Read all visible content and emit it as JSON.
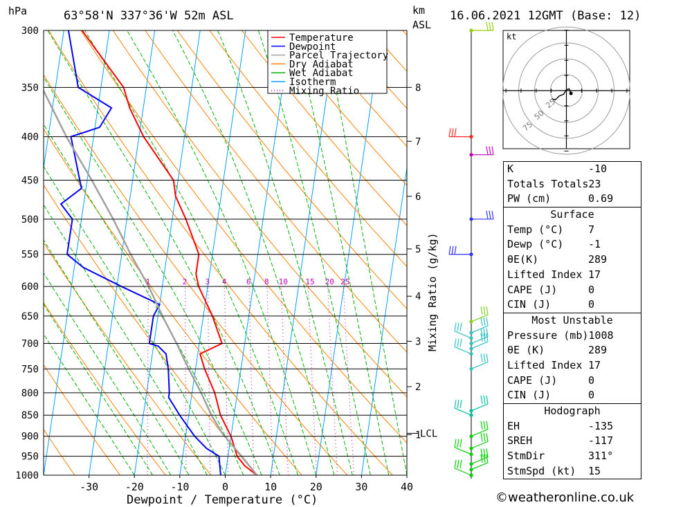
{
  "header": {
    "pressure_unit": "hPa",
    "location": "63°58'N  337°36'W  52m  ASL",
    "height_unit_line1": "km",
    "height_unit_line2": "ASL",
    "datetime": "16.06.2021  12GMT  (Base: 12)"
  },
  "chart_data": [
    {
      "type": "line",
      "subtype": "skew-T log-P diagram",
      "xlabel": "Dewpoint / Temperature (°C)",
      "y_left_label": "hPa",
      "y_right_label": "km ASL",
      "mixing_ratio_label": "Mixing Ratio (g/kg)",
      "xlim": [
        -40,
        40
      ],
      "ylim": [
        1000,
        300
      ],
      "x_ticks": [
        -30,
        -20,
        -10,
        0,
        10,
        20,
        30,
        40
      ],
      "pressure_ticks": [
        300,
        350,
        400,
        450,
        500,
        550,
        600,
        650,
        700,
        750,
        800,
        850,
        900,
        950,
        1000
      ],
      "height_ticks_km": [
        {
          "km": "8",
          "p": 350
        },
        {
          "km": "7",
          "p": 405
        },
        {
          "km": "6",
          "p": 470
        },
        {
          "km": "5",
          "p": 542
        },
        {
          "km": "4",
          "p": 616
        },
        {
          "km": "3",
          "p": 696
        },
        {
          "km": "2",
          "p": 787
        },
        {
          "km": "1",
          "p": 896
        }
      ],
      "lcl": {
        "label": "LCL",
        "p": 893
      },
      "mixing_ratio_values": [
        "1",
        "2",
        "3",
        "4",
        "6",
        "8",
        "10",
        "15",
        "20",
        "25"
      ],
      "legend": {
        "position": "top-right of plot",
        "entries": [
          {
            "name": "Temperature",
            "color": "#ff0000",
            "style": "solid"
          },
          {
            "name": "Dewpoint",
            "color": "#0000ff",
            "style": "solid"
          },
          {
            "name": "Parcel Trajectory",
            "color": "#a0a0a0",
            "style": "solid"
          },
          {
            "name": "Dry Adiabat",
            "color": "#ff8000",
            "style": "solid"
          },
          {
            "name": "Wet Adiabat",
            "color": "#00b000",
            "style": "solid"
          },
          {
            "name": "Isotherm",
            "color": "#00a0ff",
            "style": "solid"
          },
          {
            "name": "Mixing Ratio",
            "color": "#c000c0",
            "style": "dotted"
          }
        ]
      },
      "series": [
        {
          "name": "Temperature",
          "color": "#ff0000",
          "points": [
            {
              "p": 1000,
              "t": 7
            },
            {
              "p": 975,
              "t": 4
            },
            {
              "p": 950,
              "t": 2
            },
            {
              "p": 900,
              "t": 0
            },
            {
              "p": 850,
              "t": -3
            },
            {
              "p": 800,
              "t": -5
            },
            {
              "p": 750,
              "t": -8
            },
            {
              "p": 720,
              "t": -9.5
            },
            {
              "p": 700,
              "t": -5
            },
            {
              "p": 650,
              "t": -8
            },
            {
              "p": 600,
              "t": -12
            },
            {
              "p": 580,
              "t": -13
            },
            {
              "p": 550,
              "t": -13
            },
            {
              "p": 500,
              "t": -17
            },
            {
              "p": 470,
              "t": -20
            },
            {
              "p": 450,
              "t": -21
            },
            {
              "p": 400,
              "t": -29
            },
            {
              "p": 370,
              "t": -33
            },
            {
              "p": 350,
              "t": -35
            },
            {
              "p": 300,
              "t": -46
            }
          ]
        },
        {
          "name": "Dewpoint",
          "color": "#0000ff",
          "points": [
            {
              "p": 1000,
              "t": -1
            },
            {
              "p": 950,
              "t": -2
            },
            {
              "p": 930,
              "t": -5
            },
            {
              "p": 900,
              "t": -8
            },
            {
              "p": 850,
              "t": -12
            },
            {
              "p": 810,
              "t": -15
            },
            {
              "p": 800,
              "t": -15
            },
            {
              "p": 750,
              "t": -16
            },
            {
              "p": 720,
              "t": -17
            },
            {
              "p": 705,
              "t": -19
            },
            {
              "p": 700,
              "t": -21
            },
            {
              "p": 650,
              "t": -21
            },
            {
              "p": 630,
              "t": -20
            },
            {
              "p": 600,
              "t": -29
            },
            {
              "p": 570,
              "t": -38
            },
            {
              "p": 550,
              "t": -42
            },
            {
              "p": 500,
              "t": -42
            },
            {
              "p": 480,
              "t": -45
            },
            {
              "p": 460,
              "t": -41
            },
            {
              "p": 400,
              "t": -45
            },
            {
              "p": 390,
              "t": -39
            },
            {
              "p": 370,
              "t": -37
            },
            {
              "p": 350,
              "t": -45
            },
            {
              "p": 300,
              "t": -49
            }
          ]
        },
        {
          "name": "Parcel Trajectory",
          "color": "#a0a0a0",
          "points": [
            {
              "p": 1000,
              "t": 7
            },
            {
              "p": 950,
              "t": 3
            },
            {
              "p": 893,
              "t": -2
            },
            {
              "p": 850,
              "t": -5
            },
            {
              "p": 800,
              "t": -8
            },
            {
              "p": 750,
              "t": -11.5
            },
            {
              "p": 700,
              "t": -15
            },
            {
              "p": 650,
              "t": -19
            },
            {
              "p": 600,
              "t": -23
            },
            {
              "p": 550,
              "t": -28
            },
            {
              "p": 500,
              "t": -33
            },
            {
              "p": 450,
              "t": -39
            },
            {
              "p": 400,
              "t": -46
            },
            {
              "p": 350,
              "t": -53
            },
            {
              "p": 300,
              "t": -61
            }
          ]
        }
      ],
      "wind_barbs_levels_hpa": [
        1000,
        985,
        970,
        945,
        930,
        900,
        850,
        840,
        750,
        720,
        710,
        700,
        690,
        680,
        660,
        550,
        500,
        420,
        400,
        300
      ]
    },
    {
      "type": "scatter",
      "subtype": "hodograph",
      "unit_label": "kt",
      "ring_labels": [
        "25",
        "50",
        "75"
      ],
      "trace": [
        {
          "u": 5,
          "v": -3
        },
        {
          "u": 3,
          "v": 2
        },
        {
          "u": 0,
          "v": 1
        },
        {
          "u": -3,
          "v": -4
        },
        {
          "u": -8,
          "v": -6
        },
        {
          "u": -12,
          "v": -10
        },
        {
          "u": -16,
          "v": -9
        }
      ]
    }
  ],
  "indices": {
    "k": {
      "label": "K",
      "value": "-10"
    },
    "totals": {
      "label": "Totals Totals",
      "value": "23"
    },
    "pw": {
      "label": "PW (cm)",
      "value": "0.69"
    },
    "surface": {
      "heading": "Surface",
      "temp": {
        "label": "Temp (°C)",
        "value": "7"
      },
      "dewp": {
        "label": "Dewp (°C)",
        "value": "-1"
      },
      "thetae": {
        "label": "θE(K)",
        "value": "289"
      },
      "li": {
        "label": "Lifted Index",
        "value": "17"
      },
      "cape": {
        "label": "CAPE (J)",
        "value": "0"
      },
      "cin": {
        "label": "CIN (J)",
        "value": "0"
      }
    },
    "mu": {
      "heading": "Most Unstable",
      "pressure": {
        "label": "Pressure (mb)",
        "value": "1008"
      },
      "thetae": {
        "label": "θE (K)",
        "value": "289"
      },
      "li": {
        "label": "Lifted Index",
        "value": "17"
      },
      "cape": {
        "label": "CAPE (J)",
        "value": "0"
      },
      "cin": {
        "label": "CIN (J)",
        "value": "0"
      }
    },
    "hodo": {
      "heading": "Hodograph",
      "eh": {
        "label": "EH",
        "value": "-135"
      },
      "sreh": {
        "label": "SREH",
        "value": "-117"
      },
      "stmdir": {
        "label": "StmDir",
        "value": "311°"
      },
      "stmspd": {
        "label": "StmSpd (kt)",
        "value": "15"
      }
    }
  },
  "footer": {
    "credit": "©weatheronline.co.uk"
  }
}
